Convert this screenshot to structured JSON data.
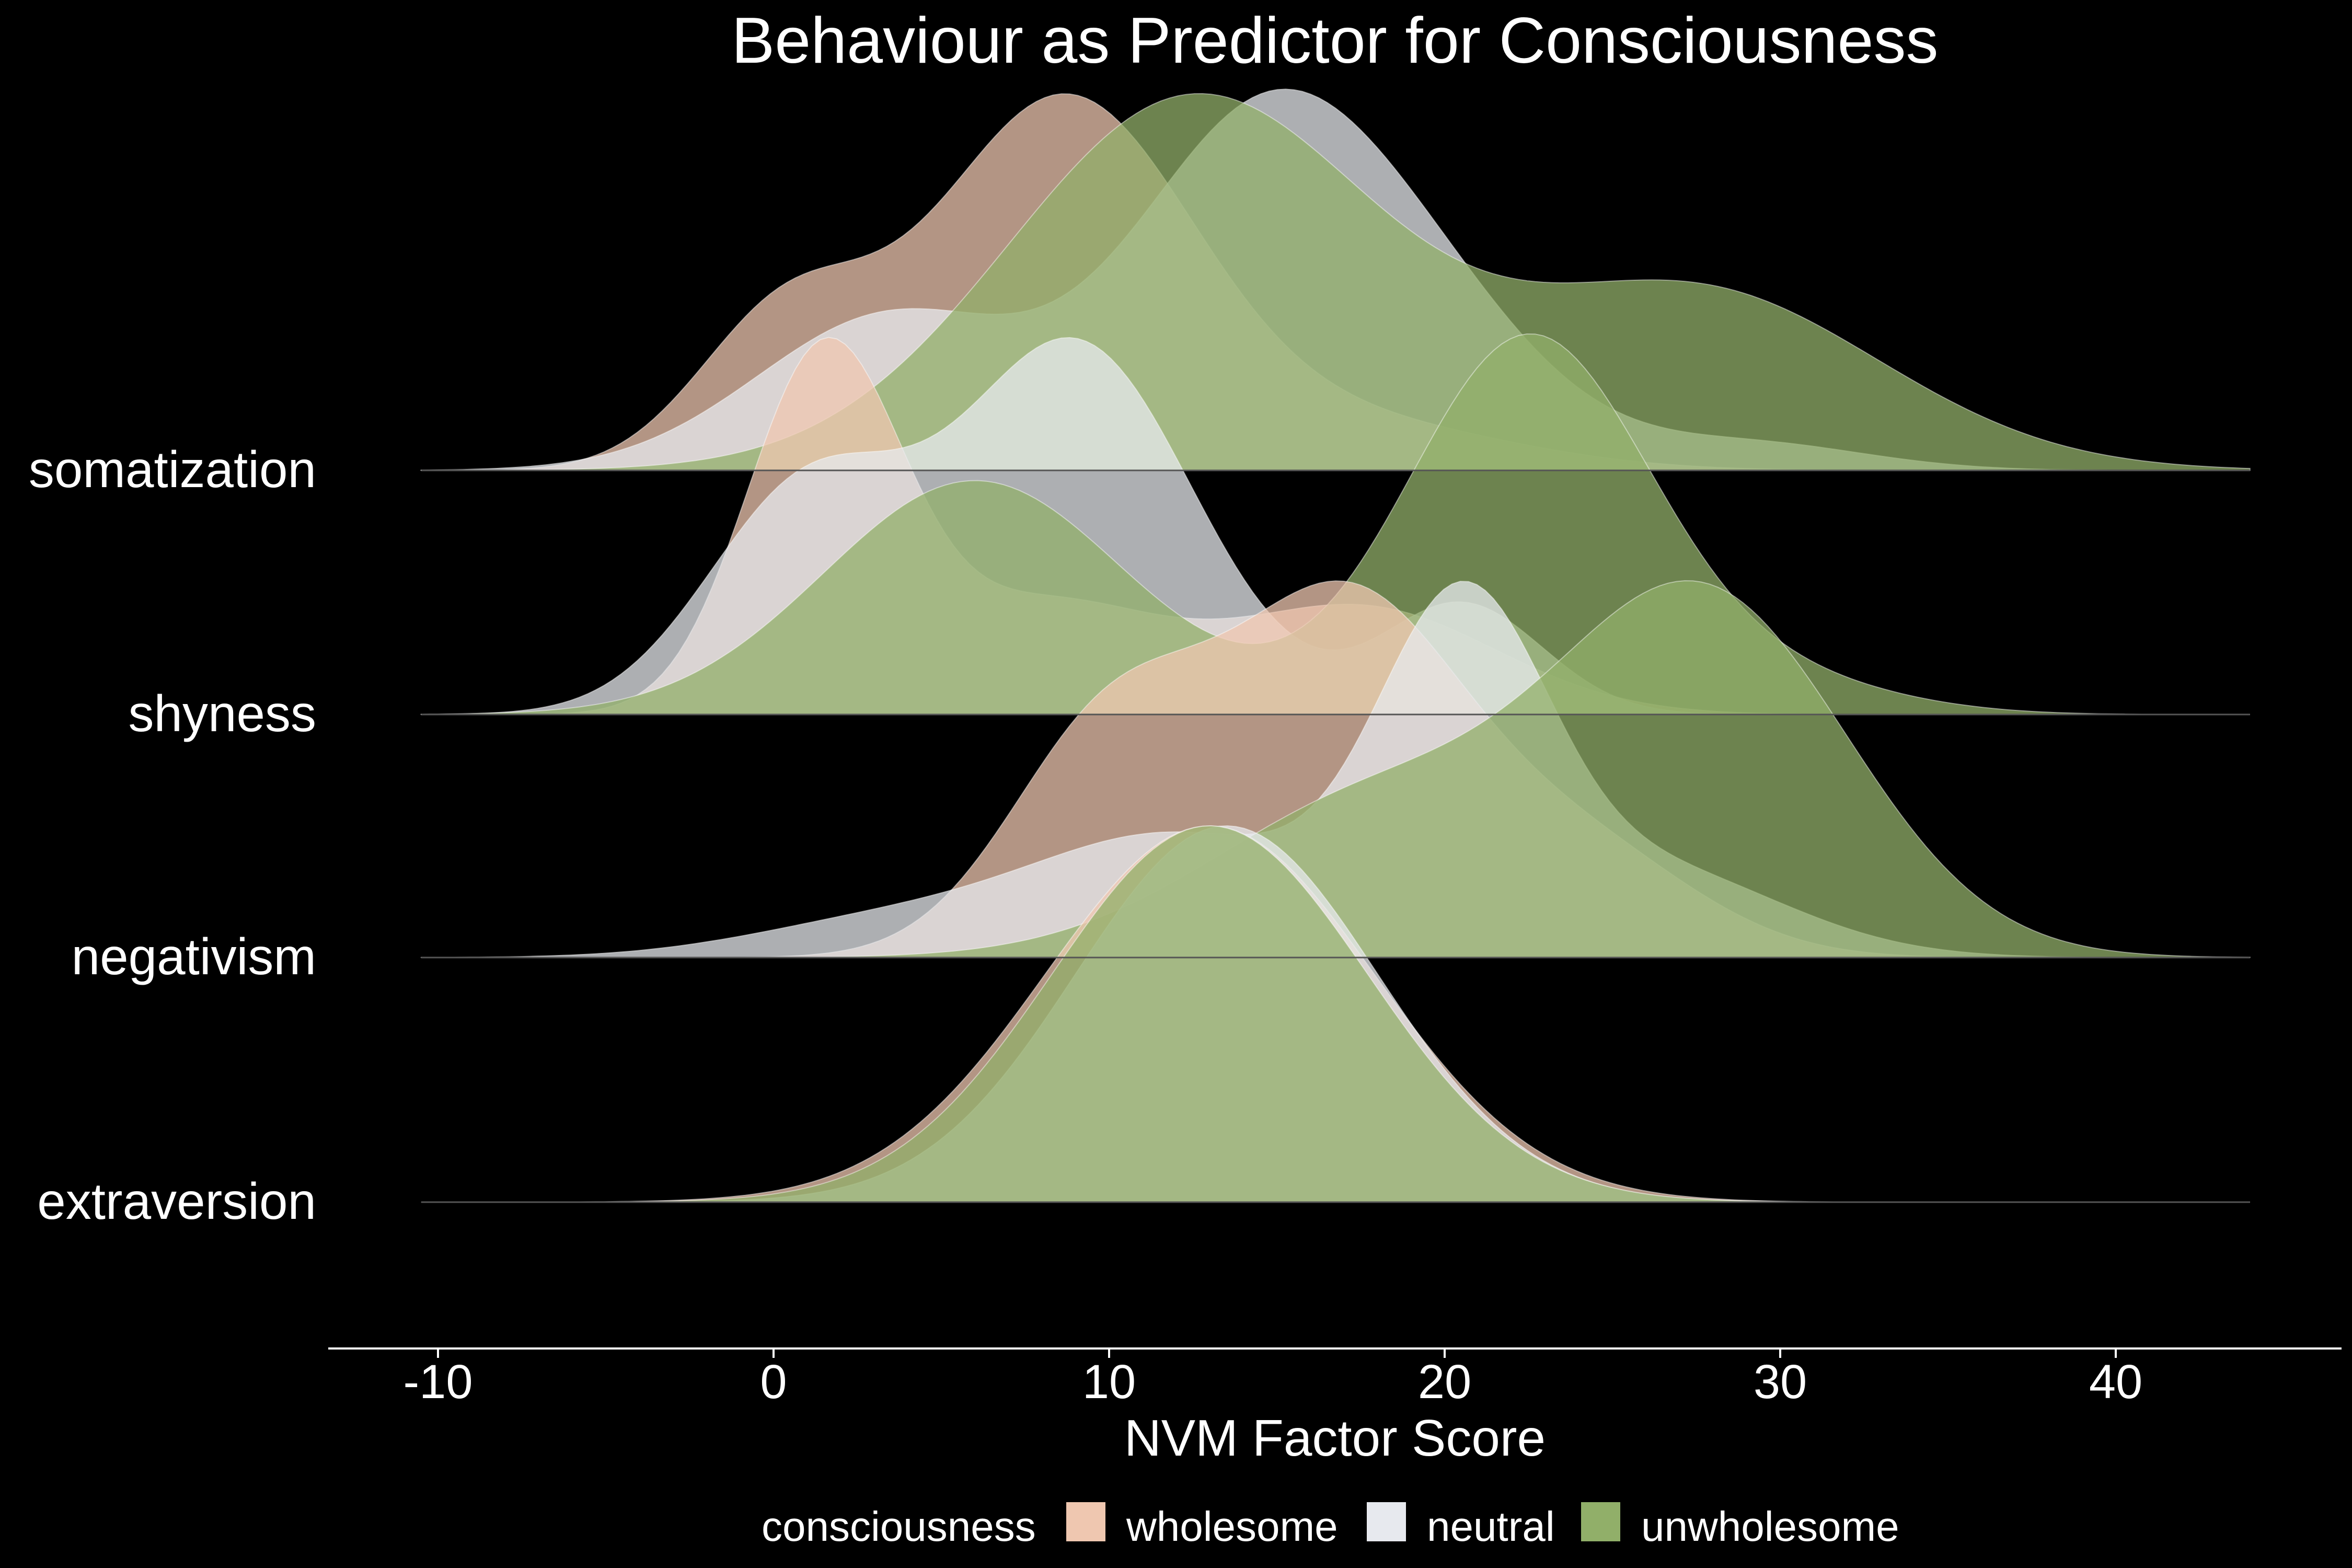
{
  "chart_data": {
    "type": "area",
    "subtype": "ridgeline density",
    "title": "Behaviour as Predictor for Consciousness",
    "xlabel": "NVM Factor Score",
    "ylabel": "",
    "xlim": [
      -10.5,
      44
    ],
    "xticks": [
      -10,
      0,
      10,
      20,
      30,
      40
    ],
    "xtick_labels": [
      "-10",
      "0",
      "10",
      "20",
      "30",
      "40"
    ],
    "categories": [
      "somatization",
      "shyness",
      "negativism",
      "extraversion"
    ],
    "legend": {
      "title": "consciousness",
      "position": "bottom",
      "entries": [
        "wholesome",
        "neutral",
        "unwholesome"
      ]
    },
    "background": "#000000",
    "grid": false,
    "colors": {
      "wholesome": "#efc7b0",
      "neutral": "#e7e9ee",
      "unwholesome": "#91af69"
    },
    "series_curves": [
      {
        "category": "somatization",
        "series": "wholesome",
        "peak_value": 8.5,
        "components": [
          {
            "mean": 8.6,
            "sd": 3.9,
            "weight": 1.0
          },
          {
            "mean": 0.3,
            "sd": 2.6,
            "weight": 0.4
          },
          {
            "mean": 17.5,
            "sd": 4.6,
            "weight": 0.12
          }
        ]
      },
      {
        "category": "somatization",
        "series": "neutral",
        "peak_value": 14.5,
        "components": [
          {
            "mean": 14.6,
            "sd": 3.9,
            "weight": 1.0
          },
          {
            "mean": 3.5,
            "sd": 4.0,
            "weight": 0.45
          },
          {
            "mean": 29.0,
            "sd": 3.5,
            "weight": 0.08
          },
          {
            "mean": 20.0,
            "sd": 3.5,
            "weight": 0.3
          }
        ]
      },
      {
        "category": "somatization",
        "series": "unwholesome",
        "peak_value": 13.0,
        "components": [
          {
            "mean": 12.5,
            "sd": 5.5,
            "weight": 1.0
          },
          {
            "mean": 27.5,
            "sd": 5.5,
            "weight": 0.48
          }
        ]
      },
      {
        "category": "shyness",
        "series": "wholesome",
        "peak_value": 1.5,
        "components": [
          {
            "mean": 1.5,
            "sd": 2.3,
            "weight": 1.0
          },
          {
            "mean": 8.0,
            "sd": 3.5,
            "weight": 0.3
          },
          {
            "mean": 17.5,
            "sd": 4.0,
            "weight": 0.3
          }
        ]
      },
      {
        "category": "shyness",
        "series": "neutral",
        "peak_value": 9.0,
        "components": [
          {
            "mean": 9.0,
            "sd": 3.5,
            "weight": 1.0
          },
          {
            "mean": 1.0,
            "sd": 3.0,
            "weight": 0.6
          },
          {
            "mean": 20.5,
            "sd": 2.4,
            "weight": 0.3
          }
        ]
      },
      {
        "category": "shyness",
        "series": "unwholesome",
        "peak_value": 22.0,
        "components": [
          {
            "mean": 22.5,
            "sd": 3.6,
            "weight": 1.0
          },
          {
            "mean": 6.0,
            "sd": 4.5,
            "weight": 0.62
          },
          {
            "mean": 30.0,
            "sd": 3.5,
            "weight": 0.08
          }
        ]
      },
      {
        "category": "negativism",
        "series": "wholesome",
        "peak_value": 17.0,
        "components": [
          {
            "mean": 17.0,
            "sd": 3.5,
            "weight": 1.0
          },
          {
            "mean": 10.0,
            "sd": 3.0,
            "weight": 0.65
          },
          {
            "mean": 24.0,
            "sd": 3.5,
            "weight": 0.3
          }
        ]
      },
      {
        "category": "negativism",
        "series": "neutral",
        "peak_value": 20.5,
        "components": [
          {
            "mean": 20.5,
            "sd": 2.5,
            "weight": 1.0
          },
          {
            "mean": 12.0,
            "sd": 4.5,
            "weight": 0.38
          },
          {
            "mean": 26.0,
            "sd": 4.0,
            "weight": 0.28
          },
          {
            "mean": 3.0,
            "sd": 4.0,
            "weight": 0.1
          }
        ]
      },
      {
        "category": "negativism",
        "series": "unwholesome",
        "peak_value": 27.5,
        "components": [
          {
            "mean": 27.8,
            "sd": 4.3,
            "weight": 1.0
          },
          {
            "mean": 18.0,
            "sd": 5.0,
            "weight": 0.45
          }
        ]
      },
      {
        "category": "extraversion",
        "series": "wholesome",
        "peak_value": 13.0,
        "components": [
          {
            "mean": 13.0,
            "sd": 4.9,
            "weight": 1.0
          }
        ]
      },
      {
        "category": "extraversion",
        "series": "neutral",
        "peak_value": 13.5,
        "components": [
          {
            "mean": 13.5,
            "sd": 4.5,
            "weight": 1.0
          }
        ]
      },
      {
        "category": "extraversion",
        "series": "unwholesome",
        "peak_value": 13.0,
        "components": [
          {
            "mean": 13.0,
            "sd": 4.7,
            "weight": 1.0
          }
        ]
      }
    ]
  }
}
